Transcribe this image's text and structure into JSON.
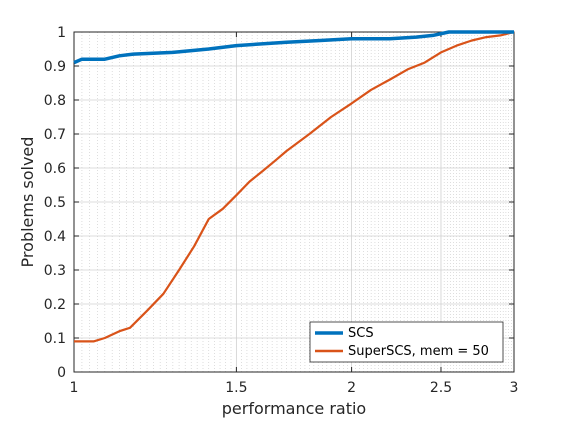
{
  "chart_data": {
    "type": "line",
    "xlabel": "performance ratio",
    "ylabel": "Problems solved",
    "x_scale": "log",
    "xlim": [
      1,
      3
    ],
    "ylim": [
      0,
      1
    ],
    "x_ticks": [
      1,
      1.5,
      2,
      2.5,
      3
    ],
    "x_tick_labels": [
      "1",
      "1.5",
      "2",
      "2.5",
      "3"
    ],
    "y_ticks": [
      0,
      0.1,
      0.2,
      0.3,
      0.4,
      0.5,
      0.6,
      0.7,
      0.8,
      0.9,
      1
    ],
    "y_tick_labels": [
      "0",
      "0.1",
      "0.2",
      "0.3",
      "0.4",
      "0.5",
      "0.6",
      "0.7",
      "0.8",
      "0.9",
      "1"
    ],
    "grid": true,
    "legend_position": "bottom-right",
    "series": [
      {
        "name": "SCS",
        "color": "#0072BD",
        "x": [
          1,
          1.02,
          1.08,
          1.12,
          1.16,
          1.28,
          1.4,
          1.5,
          1.7,
          1.85,
          2.0,
          2.2,
          2.35,
          2.45,
          2.55,
          2.75,
          3.0
        ],
        "y": [
          0.91,
          0.92,
          0.92,
          0.93,
          0.935,
          0.94,
          0.95,
          0.96,
          0.97,
          0.975,
          0.98,
          0.98,
          0.985,
          0.99,
          1.0,
          1.0,
          1.0
        ]
      },
      {
        "name": "SuperSCS, mem = 50",
        "color": "#D95319",
        "x": [
          1,
          1.05,
          1.08,
          1.12,
          1.15,
          1.2,
          1.25,
          1.3,
          1.35,
          1.4,
          1.45,
          1.5,
          1.55,
          1.6,
          1.65,
          1.7,
          1.8,
          1.9,
          2.0,
          2.1,
          2.2,
          2.3,
          2.4,
          2.5,
          2.6,
          2.7,
          2.8,
          2.9,
          3.0
        ],
        "y": [
          0.09,
          0.09,
          0.1,
          0.12,
          0.13,
          0.18,
          0.23,
          0.3,
          0.37,
          0.45,
          0.48,
          0.52,
          0.56,
          0.59,
          0.62,
          0.65,
          0.7,
          0.75,
          0.79,
          0.83,
          0.86,
          0.89,
          0.91,
          0.94,
          0.96,
          0.975,
          0.985,
          0.99,
          1.0
        ]
      }
    ]
  }
}
